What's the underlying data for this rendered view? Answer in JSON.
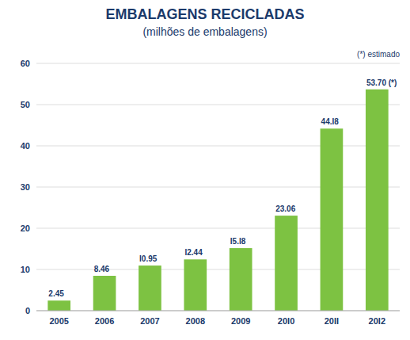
{
  "chart_data": {
    "type": "bar",
    "title": "EMBALAGENS RECICLADAS",
    "subtitle": "(milhões de embalagens)",
    "annotation": "(*) estimado",
    "categories": [
      "2005",
      "2006",
      "2007",
      "2008",
      "2009",
      "20I0",
      "20II",
      "20I2"
    ],
    "values": [
      2.45,
      8.46,
      10.95,
      12.44,
      15.18,
      23.06,
      44.18,
      53.7
    ],
    "value_labels": [
      "2.45",
      "8.46",
      "I0.95",
      "I2.44",
      "I5.I8",
      "23.06",
      "44.I8",
      "53.70 (*)"
    ],
    "data_labels": true,
    "color": "#7DC242",
    "ylim": [
      0,
      60
    ],
    "yticks": [
      0,
      10,
      20,
      30,
      40,
      50,
      60
    ],
    "grid": true
  }
}
